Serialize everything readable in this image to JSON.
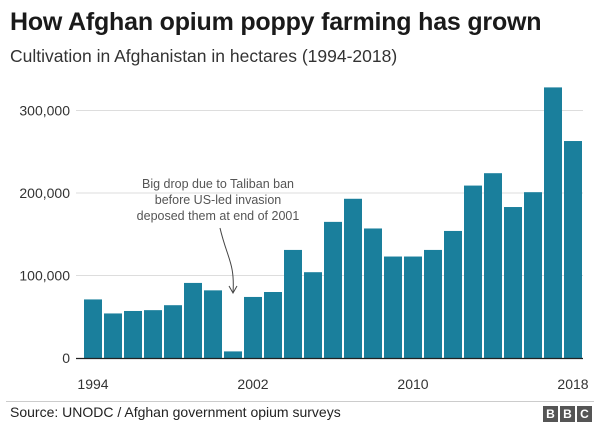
{
  "chart_data": {
    "type": "bar",
    "title": "How Afghan opium poppy farming has grown",
    "subtitle": "Cultivation in Afghanistan in hectares (1994-2018)",
    "categories": [
      "1994",
      "1995",
      "1996",
      "1997",
      "1998",
      "1999",
      "2000",
      "2001",
      "2002",
      "2003",
      "2004",
      "2005",
      "2006",
      "2007",
      "2008",
      "2009",
      "2010",
      "2011",
      "2012",
      "2013",
      "2014",
      "2015",
      "2016",
      "2017",
      "2018"
    ],
    "values": [
      71000,
      54000,
      57000,
      58000,
      64000,
      91000,
      82000,
      8000,
      74000,
      80000,
      131000,
      104000,
      165000,
      193000,
      157000,
      123000,
      123000,
      131000,
      154000,
      209000,
      224000,
      183000,
      201000,
      328000,
      263000
    ],
    "ylim": [
      0,
      330000
    ],
    "y_ticks": [
      0,
      100000,
      200000,
      300000
    ],
    "y_tick_labels": [
      "0",
      "100,000",
      "200,000",
      "300,000"
    ],
    "x_tick_labels": [
      {
        "category": "1994",
        "label": "1994"
      },
      {
        "category": "2002",
        "label": "2002"
      },
      {
        "category": "2010",
        "label": "2010"
      },
      {
        "category": "2018",
        "label": "2018"
      }
    ],
    "bar_color": "#1a7f9c",
    "grid_color": "#dddddd",
    "annotation": {
      "category": "2001",
      "lines": [
        "Big drop due to Taliban ban",
        "before US-led invasion",
        "deposed them at end of 2001"
      ]
    }
  },
  "footer": {
    "source": "Source: UNODC / Afghan government opium surveys",
    "logo_letters": [
      "B",
      "B",
      "C"
    ]
  }
}
